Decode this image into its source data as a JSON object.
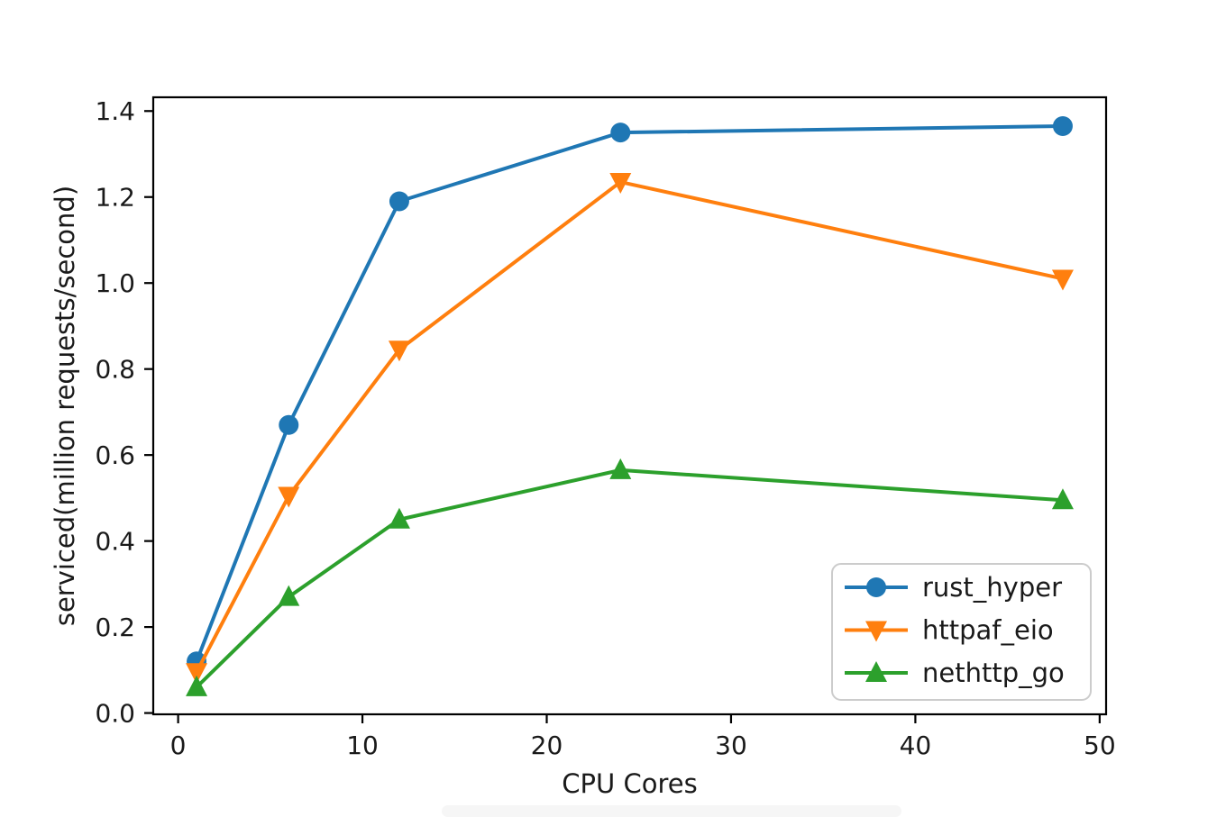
{
  "figure": {
    "background": "#ffffff",
    "title": ""
  },
  "chart_data": {
    "type": "line",
    "title": "",
    "xlabel": "CPU Cores",
    "ylabel": "serviced(million requests/second)",
    "x": [
      1,
      6,
      12,
      24,
      48
    ],
    "series": [
      {
        "name": "rust_hyper",
        "color": "#1f77b4",
        "marker": "circle",
        "values": [
          0.12,
          0.67,
          1.19,
          1.35,
          1.365
        ]
      },
      {
        "name": "httpaf_eio",
        "color": "#ff7f0e",
        "marker": "triangle-down",
        "values": [
          0.095,
          0.505,
          0.845,
          1.235,
          1.01
        ]
      },
      {
        "name": "nethttp_go",
        "color": "#2ca02c",
        "marker": "triangle-up",
        "values": [
          0.06,
          0.27,
          0.45,
          0.565,
          0.495
        ]
      }
    ],
    "xlim": [
      -1.35,
      50.35
    ],
    "ylim": [
      -0.003,
      1.432
    ],
    "xticks": [
      0,
      10,
      20,
      30,
      40,
      50
    ],
    "xtick_labels": [
      "0",
      "10",
      "20",
      "30",
      "40",
      "50"
    ],
    "yticks": [
      0.0,
      0.2,
      0.4,
      0.6,
      0.8,
      1.0,
      1.2,
      1.4
    ],
    "ytick_labels": [
      "0.0",
      "0.2",
      "0.4",
      "0.6",
      "0.8",
      "1.0",
      "1.2",
      "1.4"
    ],
    "grid": false,
    "legend": {
      "position": "lower right",
      "entries": [
        "rust_hyper",
        "httpaf_eio",
        "nethttp_go"
      ]
    },
    "axis_color": "#000000",
    "text_color": "#1a1a1a",
    "legend_border_color": "#cccccc"
  }
}
